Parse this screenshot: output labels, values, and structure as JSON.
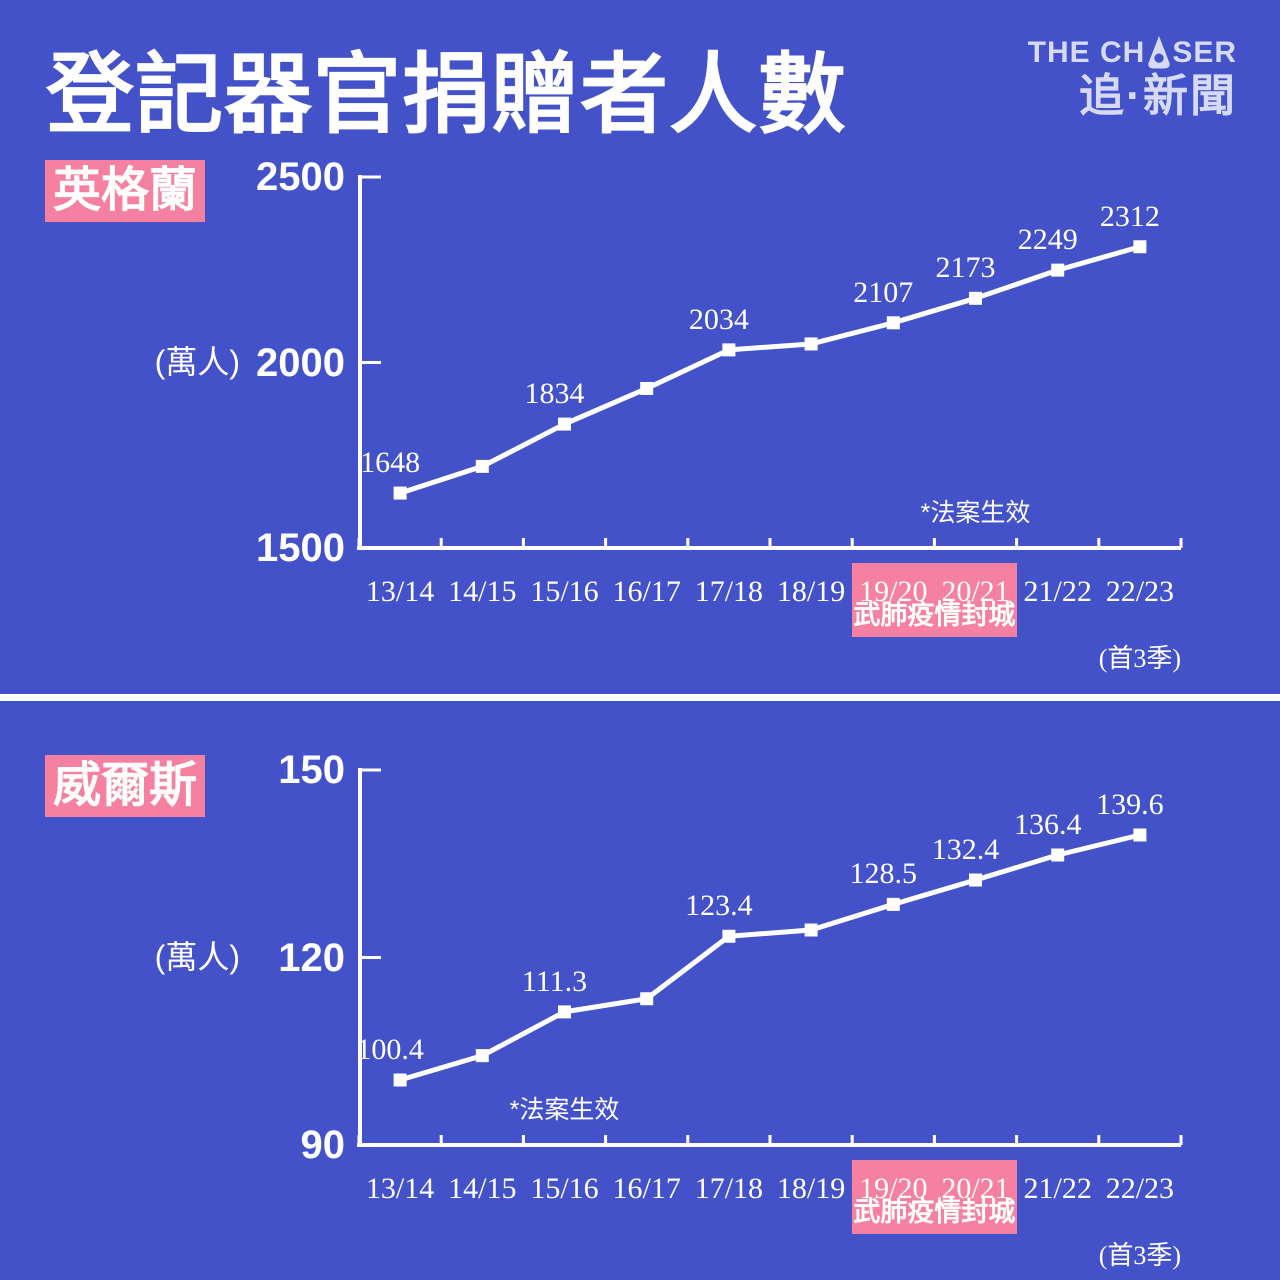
{
  "colors": {
    "background": "#4352c8",
    "accent_pink": "#f6809f",
    "text": "#ffffff",
    "logo": "#d6daf3"
  },
  "header": {
    "title": "登記器官捐贈者人數",
    "logo": {
      "line1_pre": "THE CH",
      "line1_post": "SER",
      "line1_icon": "pen-nib-icon",
      "line2": "追·新聞"
    }
  },
  "chart_data": [
    {
      "type": "line",
      "region_label": "英格蘭",
      "ylabel": "(萬人)",
      "ylim": [
        1500,
        2500
      ],
      "y_ticks": [
        2500,
        2000,
        1500
      ],
      "grid": false,
      "legend": "none",
      "categories": [
        "13/14",
        "14/15",
        "15/16",
        "16/17",
        "17/18",
        "18/19",
        "19/20",
        "20/21",
        "21/22",
        "22/23"
      ],
      "category_note": {
        "index": 9,
        "text": "(首3季)"
      },
      "values": [
        1648,
        1720,
        1834,
        1930,
        2034,
        2050,
        2107,
        2173,
        2249,
        2312
      ],
      "point_labels": [
        "1648",
        "",
        "1834",
        "",
        "2034",
        "",
        "2107",
        "2173",
        "2249",
        "2312"
      ],
      "annotation": {
        "text": "*法案生效",
        "category_index": 7
      },
      "highlight": {
        "from_index": 6,
        "to_index": 7,
        "caption": "武肺疫情封城"
      },
      "line_color": "#ffffff",
      "marker": "square"
    },
    {
      "type": "line",
      "region_label": "威爾斯",
      "ylabel": "(萬人)",
      "ylim": [
        90,
        150
      ],
      "y_ticks": [
        150,
        120,
        90
      ],
      "grid": false,
      "legend": "none",
      "categories": [
        "13/14",
        "14/15",
        "15/16",
        "16/17",
        "17/18",
        "18/19",
        "19/20",
        "20/21",
        "21/22",
        "22/23"
      ],
      "category_note": {
        "index": 9,
        "text": "(首3季)"
      },
      "values": [
        100.4,
        104.3,
        111.3,
        113.4,
        123.4,
        124.4,
        128.5,
        132.4,
        136.4,
        139.6
      ],
      "point_labels": [
        "100.4",
        "",
        "111.3",
        "",
        "123.4",
        "",
        "128.5",
        "132.4",
        "136.4",
        "139.6"
      ],
      "annotation": {
        "text": "*法案生效",
        "category_index": 2
      },
      "highlight": {
        "from_index": 6,
        "to_index": 7,
        "caption": "武肺疫情封城"
      },
      "line_color": "#ffffff",
      "marker": "square"
    }
  ]
}
